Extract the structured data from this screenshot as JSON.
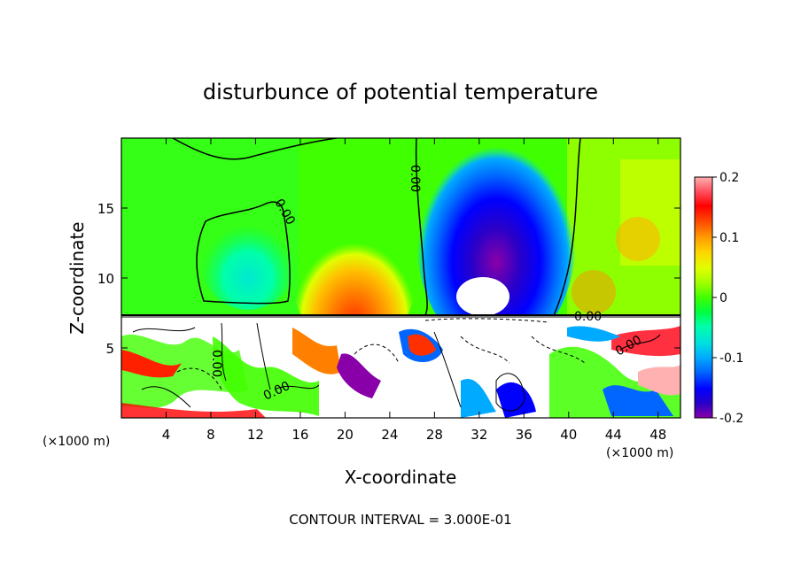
{
  "chart_data": {
    "type": "heatmap",
    "title": "disturbunce of potential temperature",
    "xlabel": "X-coordinate",
    "ylabel": "Z-coordinate",
    "x_unit": "(×1000 m)",
    "xlim": [
      0,
      50
    ],
    "ylim": [
      0,
      20
    ],
    "x_ticks": [
      4,
      8,
      12,
      16,
      20,
      24,
      28,
      32,
      36,
      40,
      44,
      48
    ],
    "y_ticks": [
      5,
      10,
      15
    ],
    "colorbar": {
      "range": [
        -0.2,
        0.2
      ],
      "tick_values": [
        0.2,
        0.1,
        0,
        -0.1,
        -0.2
      ],
      "tick_labels": [
        "0.2",
        "0.1",
        "0",
        "-0.1",
        "-0.2"
      ],
      "colors": [
        "#8a00a8",
        "#2a00c8",
        "#0000ff",
        "#0066ff",
        "#00aaff",
        "#00e0e0",
        "#00ffaa",
        "#00ff40",
        "#40ff00",
        "#a0ff00",
        "#e0ff00",
        "#ffd400",
        "#ff9a00",
        "#ff5000",
        "#ff0000",
        "#ff5060",
        "#ffb0b0"
      ]
    },
    "contour_labels": [
      "0.00",
      "0.00",
      "0.00",
      "0.00",
      "0.00",
      "0.00"
    ],
    "footnote": "CONTOUR INTERVAL = 3.000E-01"
  }
}
